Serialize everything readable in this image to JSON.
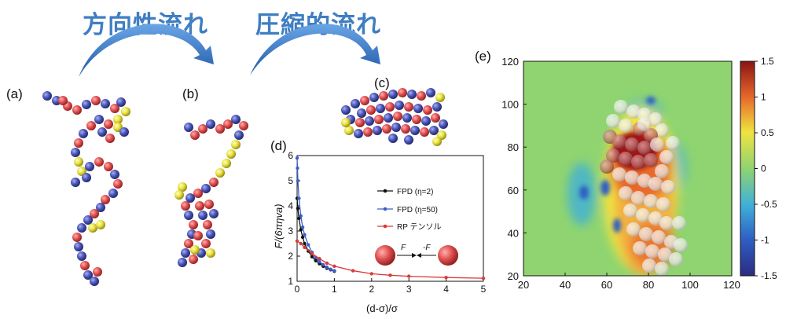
{
  "headings": {
    "left": "方向性流れ",
    "right": "圧縮的流れ"
  },
  "panel_labels": {
    "a": "(a)",
    "b": "(b)",
    "c": "(c)",
    "d": "(d)",
    "e": "(e)"
  },
  "colors": {
    "heading": "#3f7ec1",
    "arrow": "#2f6fc0",
    "bead_red": "#e05050",
    "bead_blue": "#4a55b8",
    "bead_yellow": "#e8e040"
  },
  "inset": {
    "force_left": "F",
    "force_right": "-F"
  },
  "chart_data": [
    {
      "type": "line",
      "xlabel": "(d-σ)/σ",
      "ylabel": "F/(6πηva)",
      "xlim": [
        0,
        5
      ],
      "ylim": [
        1,
        6
      ],
      "xticks": [
        "0",
        "1",
        "2",
        "3",
        "4",
        "5"
      ],
      "yticks": [
        "1",
        "2",
        "3",
        "4",
        "5",
        "6"
      ],
      "legend_position": "right",
      "series": [
        {
          "name": "FPD (η=2)",
          "color": "#111111",
          "x": [
            0.0,
            0.02,
            0.05,
            0.1,
            0.15,
            0.2,
            0.3,
            0.4,
            0.5,
            0.6,
            0.7,
            0.8,
            0.9,
            1.0
          ],
          "y": [
            4.3,
            3.9,
            3.5,
            3.05,
            2.75,
            2.5,
            2.2,
            1.98,
            1.82,
            1.7,
            1.6,
            1.52,
            1.46,
            1.4
          ]
        },
        {
          "name": "FPD (η=50)",
          "color": "#3a5fc8",
          "x": [
            0.0,
            0.01,
            0.02,
            0.05,
            0.1,
            0.15,
            0.2,
            0.3,
            0.4,
            0.5,
            0.6,
            0.7,
            0.8,
            0.9,
            1.0
          ],
          "y": [
            5.9,
            5.5,
            5.0,
            4.3,
            3.6,
            3.15,
            2.85,
            2.45,
            2.15,
            1.95,
            1.78,
            1.66,
            1.56,
            1.48,
            1.42
          ]
        },
        {
          "name": "RP テンソル",
          "color": "#d83a3a",
          "x": [
            0.0,
            0.1,
            0.2,
            0.4,
            0.6,
            0.8,
            1.0,
            1.5,
            2.0,
            2.5,
            3.0,
            4.0,
            5.0
          ],
          "y": [
            2.6,
            2.5,
            2.35,
            2.1,
            1.9,
            1.72,
            1.6,
            1.42,
            1.3,
            1.24,
            1.2,
            1.15,
            1.12
          ]
        }
      ]
    },
    {
      "type": "heatmap",
      "xlim": [
        20,
        120
      ],
      "ylim": [
        20,
        120
      ],
      "xticks": [
        "20",
        "40",
        "60",
        "80",
        "100",
        "120"
      ],
      "yticks": [
        "20",
        "40",
        "60",
        "80",
        "100",
        "120"
      ],
      "colorbar": {
        "range": [
          -1.5,
          1.5
        ],
        "ticks": [
          "1.5",
          "1",
          "0.5",
          "0",
          "-0.5",
          "-1",
          "-1.5"
        ]
      }
    }
  ]
}
